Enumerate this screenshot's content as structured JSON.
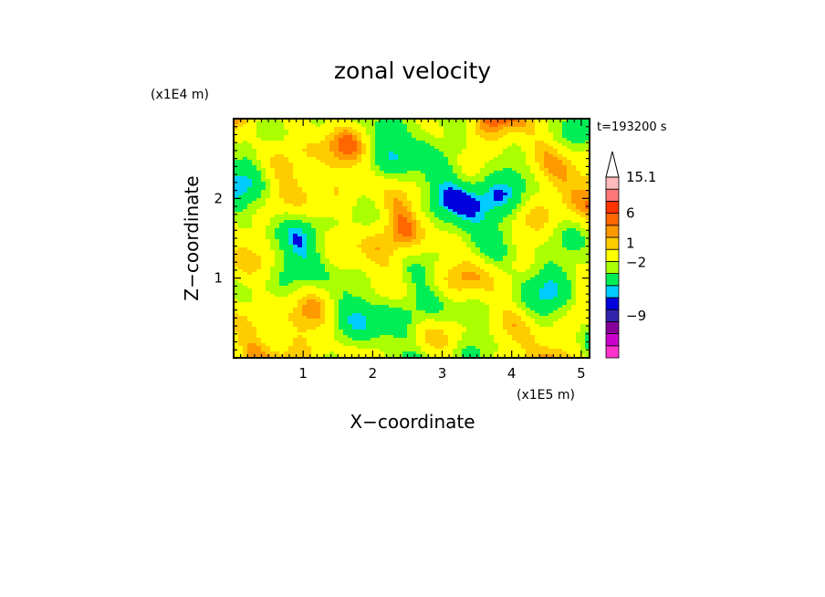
{
  "chart_data": {
    "type": "heatmap",
    "title": "zonal velocity",
    "xlabel": "X−coordinate",
    "ylabel": "Z−coordinate",
    "x_unit": "(x1E5 m)",
    "y_unit": "(x1E4 m)",
    "annotation": "t=193200 s",
    "xlim": [
      0,
      5.12
    ],
    "ylim": [
      0,
      3.0
    ],
    "x_ticks": [
      {
        "value": 1,
        "label": "1"
      },
      {
        "value": 2,
        "label": "2"
      },
      {
        "value": 3,
        "label": "3"
      },
      {
        "value": 4,
        "label": "4"
      },
      {
        "value": 5,
        "label": "5"
      }
    ],
    "y_ticks": [
      {
        "value": 1,
        "label": "1"
      },
      {
        "value": 2,
        "label": "2"
      }
    ],
    "colorbar": {
      "levels": [
        {
          "color": "#ff33cc"
        },
        {
          "color": "#cc00cc"
        },
        {
          "color": "#880099"
        },
        {
          "color": "#3322aa"
        },
        {
          "color": "#0000dd"
        },
        {
          "color": "#00ccff"
        },
        {
          "color": "#00ee55"
        },
        {
          "color": "#aaff00"
        },
        {
          "color": "#ffff00"
        },
        {
          "color": "#ffcc00"
        },
        {
          "color": "#ff9900"
        },
        {
          "color": "#ff6600"
        },
        {
          "color": "#ff3300"
        },
        {
          "color": "#ff7777"
        },
        {
          "color": "#ffbbbb"
        },
        {
          "color": "#ffffff"
        }
      ],
      "labels": [
        {
          "text": "15.1",
          "at_level": 15
        },
        {
          "text": "6",
          "at_level": 12
        },
        {
          "text": "1",
          "at_level": 9.5
        },
        {
          "text": "−2",
          "at_level": 7.9
        },
        {
          "text": "−9",
          "at_level": 3.5
        }
      ]
    },
    "grid": false,
    "legend": "right colorbar"
  }
}
